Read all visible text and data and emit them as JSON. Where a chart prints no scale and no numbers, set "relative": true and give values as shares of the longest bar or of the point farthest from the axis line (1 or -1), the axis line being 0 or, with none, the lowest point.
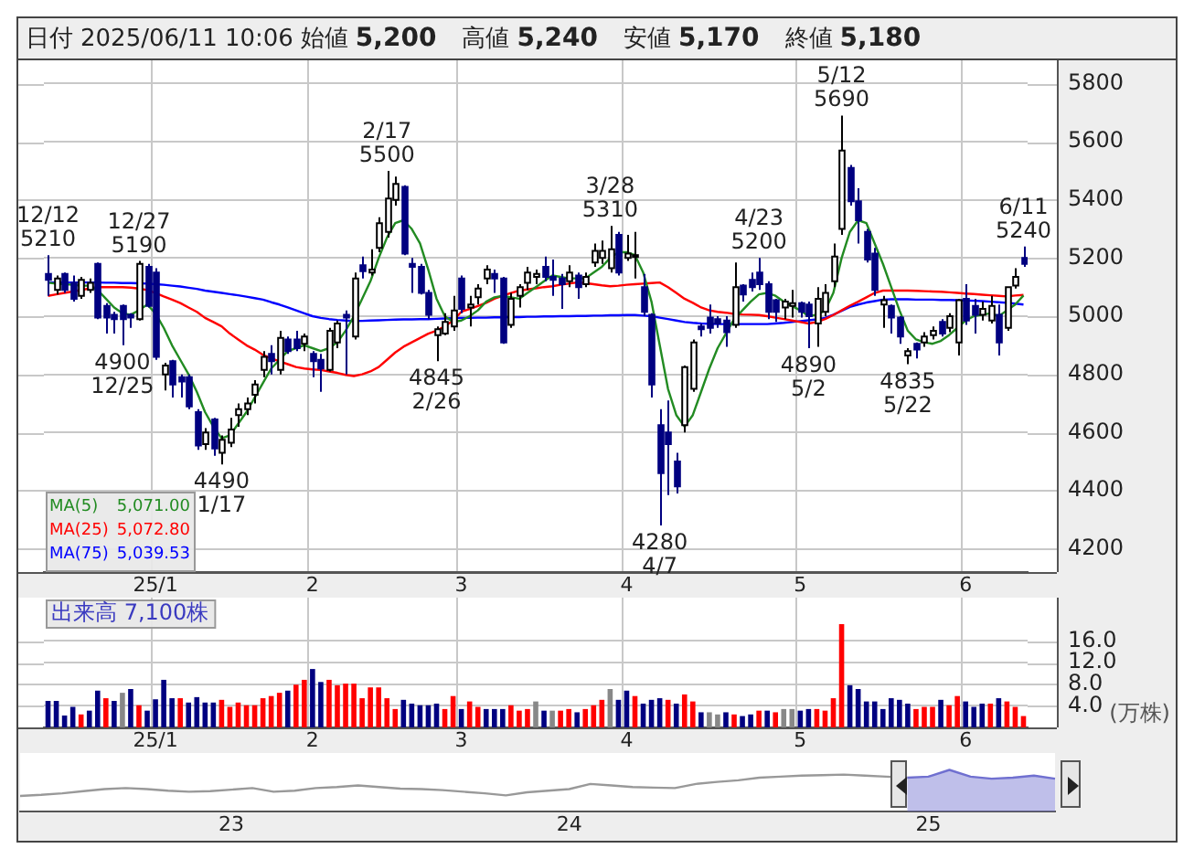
{
  "chart_data": [
    {
      "type": "candlestick",
      "title": "日付 2025/06/11 10:06 始値 5,200 高値 5,240 安値 5,170 終値 5,180",
      "categories": [
        null,
        null,
        null,
        null,
        null,
        null,
        null,
        null,
        null,
        null,
        null,
        null,
        null,
        "25/1",
        null,
        null,
        null,
        null,
        null,
        null,
        null,
        null,
        null,
        null,
        null,
        null,
        null,
        null,
        null,
        null,
        null,
        null,
        "2",
        null,
        null,
        null,
        null,
        null,
        null,
        null,
        null,
        null,
        null,
        null,
        null,
        null,
        null,
        null,
        null,
        null,
        "3",
        null,
        null,
        null,
        null,
        null,
        null,
        null,
        null,
        null,
        null,
        null,
        null,
        null,
        null,
        null,
        null,
        null,
        null,
        null,
        "4",
        null,
        null,
        null,
        null,
        null,
        null,
        null,
        null,
        null,
        null,
        null,
        null,
        null,
        null,
        null,
        null,
        null,
        null,
        null,
        null,
        "5",
        null,
        null,
        null,
        null,
        null,
        null,
        null,
        null,
        null,
        null,
        null,
        null,
        null,
        null,
        null,
        null,
        null,
        null,
        null,
        "6",
        null,
        null,
        null,
        null,
        null,
        null,
        null
      ],
      "ohlc": [
        [
          5145,
          5210,
          5070,
          5125
        ],
        [
          5090,
          5140,
          5075,
          5130
        ],
        [
          5145,
          5150,
          5080,
          5090
        ],
        [
          5115,
          5140,
          5050,
          5060
        ],
        [
          5070,
          5135,
          5060,
          5125
        ],
        [
          5090,
          5130,
          5080,
          5115
        ],
        [
          5180,
          5185,
          4990,
          4995
        ],
        [
          5035,
          5045,
          4940,
          4995
        ],
        [
          5005,
          5015,
          4940,
          4990
        ],
        [
          5035,
          5040,
          4900,
          4990
        ],
        [
          5005,
          5010,
          4960,
          4995
        ],
        [
          4990,
          5190,
          4985,
          5180
        ],
        [
          5170,
          5180,
          5030,
          5035
        ],
        [
          5150,
          5165,
          4850,
          4860
        ],
        [
          4800,
          4840,
          4745,
          4830
        ],
        [
          4845,
          4850,
          4720,
          4765
        ],
        [
          4790,
          4800,
          4720,
          4775
        ],
        [
          4790,
          4800,
          4680,
          4690
        ],
        [
          4670,
          4680,
          4540,
          4555
        ],
        [
          4560,
          4615,
          4540,
          4600
        ],
        [
          4645,
          4650,
          4520,
          4545
        ],
        [
          4530,
          4590,
          4490,
          4575
        ],
        [
          4565,
          4650,
          4550,
          4610
        ],
        [
          4660,
          4700,
          4620,
          4680
        ],
        [
          4680,
          4720,
          4660,
          4700
        ],
        [
          4730,
          4780,
          4700,
          4765
        ],
        [
          4815,
          4880,
          4790,
          4860
        ],
        [
          4870,
          4900,
          4800,
          4845
        ],
        [
          4815,
          4950,
          4800,
          4925
        ],
        [
          4920,
          4930,
          4870,
          4880
        ],
        [
          4920,
          4950,
          4880,
          4890
        ],
        [
          4905,
          4940,
          4880,
          4930
        ],
        [
          4870,
          4880,
          4790,
          4845
        ],
        [
          4850,
          4870,
          4740,
          4820
        ],
        [
          4815,
          4960,
          4810,
          4950
        ],
        [
          4910,
          4985,
          4890,
          4975
        ],
        [
          5005,
          5020,
          4800,
          4995
        ],
        [
          4930,
          5150,
          4920,
          5130
        ],
        [
          5175,
          5205,
          5130,
          5155
        ],
        [
          5150,
          5230,
          5140,
          5160
        ],
        [
          5235,
          5340,
          5220,
          5320
        ],
        [
          5290,
          5500,
          5270,
          5405
        ],
        [
          5400,
          5480,
          5380,
          5455
        ],
        [
          5445,
          5450,
          5210,
          5215
        ],
        [
          5180,
          5200,
          5080,
          5170
        ],
        [
          5170,
          5180,
          5075,
          5080
        ],
        [
          5080,
          5090,
          4990,
          5005
        ],
        [
          4935,
          4965,
          4845,
          4955
        ],
        [
          4940,
          5010,
          4935,
          4980
        ],
        [
          4965,
          5070,
          4950,
          5020
        ],
        [
          5130,
          5140,
          5010,
          5025
        ],
        [
          5030,
          5070,
          4965,
          5040
        ],
        [
          5065,
          5110,
          5040,
          5095
        ],
        [
          5130,
          5175,
          5110,
          5160
        ],
        [
          5145,
          5160,
          5080,
          5130
        ],
        [
          5130,
          5135,
          4905,
          4910
        ],
        [
          4970,
          5080,
          4960,
          5060
        ],
        [
          5070,
          5110,
          5030,
          5100
        ],
        [
          5115,
          5170,
          5090,
          5150
        ],
        [
          5135,
          5160,
          5110,
          5145
        ],
        [
          5170,
          5205,
          5120,
          5135
        ],
        [
          5135,
          5195,
          5070,
          5125
        ],
        [
          5130,
          5145,
          5025,
          5110
        ],
        [
          5120,
          5175,
          5100,
          5150
        ],
        [
          5140,
          5150,
          5060,
          5100
        ],
        [
          5110,
          5150,
          5100,
          5135
        ],
        [
          5185,
          5250,
          5170,
          5225
        ],
        [
          5200,
          5260,
          5180,
          5225
        ],
        [
          5165,
          5310,
          5150,
          5230
        ],
        [
          5280,
          5290,
          5140,
          5150
        ],
        [
          5200,
          5280,
          5190,
          5215
        ],
        [
          5205,
          5290,
          5130,
          5210
        ],
        [
          5100,
          5145,
          5000,
          5015
        ],
        [
          5005,
          5010,
          4720,
          4765
        ],
        [
          4625,
          4680,
          4280,
          4460
        ],
        [
          4600,
          4710,
          4385,
          4560
        ],
        [
          4500,
          4530,
          4390,
          4415
        ],
        [
          4625,
          4830,
          4600,
          4825
        ],
        [
          4750,
          4920,
          4740,
          4910
        ],
        [
          4965,
          4975,
          4930,
          4955
        ],
        [
          4995,
          5040,
          4940,
          4960
        ],
        [
          4990,
          5000,
          4960,
          4975
        ],
        [
          4985,
          5000,
          4895,
          4945
        ],
        [
          4970,
          5185,
          4960,
          5100
        ],
        [
          5105,
          5110,
          5050,
          5075
        ],
        [
          5125,
          5150,
          5085,
          5100
        ],
        [
          5150,
          5200,
          5090,
          5110
        ],
        [
          5110,
          5120,
          4990,
          5015
        ],
        [
          5055,
          5060,
          4980,
          5015
        ],
        [
          5030,
          5060,
          4990,
          5050
        ],
        [
          5035,
          5090,
          4995,
          5045
        ],
        [
          5045,
          5050,
          4995,
          5015
        ],
        [
          5040,
          5050,
          4890,
          5000
        ],
        [
          4975,
          5100,
          4895,
          5060
        ],
        [
          5015,
          5110,
          5000,
          5080
        ],
        [
          5120,
          5250,
          5100,
          5205
        ],
        [
          5300,
          5690,
          5280,
          5570
        ],
        [
          5510,
          5520,
          5380,
          5395
        ],
        [
          5395,
          5440,
          5250,
          5330
        ],
        [
          5290,
          5300,
          5185,
          5195
        ],
        [
          5215,
          5235,
          5070,
          5090
        ],
        [
          5040,
          5070,
          4960,
          5055
        ],
        [
          5035,
          5040,
          4940,
          4995
        ],
        [
          4995,
          5000,
          4905,
          4930
        ],
        [
          4865,
          4890,
          4835,
          4880
        ],
        [
          4905,
          4910,
          4855,
          4885
        ],
        [
          4910,
          4945,
          4895,
          4930
        ],
        [
          4935,
          4965,
          4920,
          4950
        ],
        [
          4980,
          4990,
          4930,
          4940
        ],
        [
          4960,
          5010,
          4945,
          5000
        ],
        [
          4910,
          5060,
          4865,
          5055
        ],
        [
          5060,
          5110,
          4970,
          4985
        ],
        [
          5035,
          5060,
          4940,
          5005
        ],
        [
          5005,
          5050,
          4985,
          5025
        ],
        [
          4985,
          5070,
          4975,
          5035
        ],
        [
          5005,
          5040,
          4865,
          4910
        ],
        [
          4960,
          5100,
          4950,
          5100
        ],
        [
          5105,
          5165,
          5095,
          5135
        ],
        [
          5200,
          5240,
          5170,
          5180
        ]
      ],
      "series": [
        {
          "name": "MA(5)",
          "type": "line",
          "color": "#228b22",
          "values": [
            5115,
            5112,
            5110,
            5108,
            5105,
            5105,
            5090,
            5060,
            5030,
            5010,
            5005,
            5020,
            5040,
            5010,
            4960,
            4900,
            4850,
            4800,
            4740,
            4670,
            4620,
            4580,
            4590,
            4630,
            4670,
            4720,
            4770,
            4820,
            4850,
            4880,
            4890,
            4900,
            4890,
            4880,
            4890,
            4910,
            4950,
            5000,
            5060,
            5120,
            5200,
            5270,
            5320,
            5330,
            5300,
            5250,
            5160,
            5060,
            5000,
            4980,
            4985,
            5000,
            5020,
            5050,
            5065,
            5070,
            5065,
            5060,
            5080,
            5100,
            5120,
            5140,
            5135,
            5130,
            5130,
            5130,
            5150,
            5170,
            5200,
            5220,
            5220,
            5210,
            5150,
            5050,
            4900,
            4750,
            4660,
            4620,
            4660,
            4740,
            4820,
            4890,
            4940,
            4990,
            5020,
            5050,
            5075,
            5080,
            5070,
            5050,
            5035,
            5020,
            5000,
            5005,
            5020,
            5080,
            5200,
            5290,
            5330,
            5320,
            5250,
            5180,
            5100,
            5020,
            4950,
            4920,
            4910,
            4905,
            4915,
            4935,
            4960,
            4985,
            5000,
            5005,
            5010,
            5000,
            5020,
            5040,
            5071
          ]
        },
        {
          "name": "MA(25)",
          "type": "line",
          "color": "#ff0000",
          "values": [
            5070,
            5075,
            5080,
            5085,
            5090,
            5095,
            5100,
            5100,
            5100,
            5100,
            5098,
            5095,
            5090,
            5080,
            5068,
            5057,
            5045,
            5030,
            5015,
            4994,
            4980,
            4965,
            4940,
            4920,
            4900,
            4885,
            4867,
            4855,
            4845,
            4835,
            4825,
            4820,
            4817,
            4815,
            4810,
            4805,
            4798,
            4794,
            4800,
            4810,
            4825,
            4850,
            4875,
            4895,
            4910,
            4925,
            4940,
            4950,
            4965,
            4985,
            5015,
            5025,
            5035,
            5046,
            5060,
            5070,
            5080,
            5088,
            5092,
            5096,
            5100,
            5103,
            5108,
            5112,
            5116,
            5114,
            5110,
            5106,
            5103,
            5105,
            5108,
            5110,
            5112,
            5114,
            5116,
            5100,
            5080,
            5060,
            5046,
            5030,
            5020,
            5015,
            5012,
            5008,
            5006,
            5005,
            5004,
            5000,
            4995,
            4990,
            4985,
            4980,
            4975,
            4980,
            4990,
            5004,
            5020,
            5036,
            5050,
            5065,
            5080,
            5088,
            5088,
            5088,
            5088,
            5087,
            5086,
            5085,
            5084,
            5082,
            5080,
            5078,
            5076,
            5074,
            5072,
            5070,
            5068,
            5071,
            5073
          ]
        },
        {
          "name": "MA(75)",
          "type": "line",
          "color": "#0000ff",
          "values": [
            5116,
            5116,
            5116,
            5116,
            5116,
            5116,
            5116,
            5115,
            5115,
            5114,
            5114,
            5113,
            5112,
            5110,
            5108,
            5105,
            5102,
            5098,
            5094,
            5088,
            5084,
            5080,
            5076,
            5072,
            5067,
            5062,
            5057,
            5048,
            5040,
            5030,
            5020,
            5010,
            5000,
            4994,
            4990,
            4987,
            4985,
            4983,
            4984,
            4985,
            4986,
            4987,
            4988,
            4989,
            4989,
            4990,
            4990,
            4991,
            4992,
            4993,
            4994,
            4994,
            4995,
            4995,
            4996,
            4996,
            4997,
            4997,
            4998,
            4998,
            4999,
            4999,
            5000,
            5000,
            5001,
            5001,
            5002,
            5002,
            5003,
            5003,
            5004,
            5004,
            5002,
            5000,
            4995,
            4990,
            4985,
            4980,
            4977,
            4975,
            4974,
            4973,
            4973,
            4973,
            4973,
            4973,
            4973,
            4973,
            4975,
            4977,
            4980,
            4983,
            4986,
            4989,
            4994,
            5005,
            5018,
            5032,
            5040,
            5047,
            5052,
            5057,
            5058,
            5058,
            5058,
            5057,
            5057,
            5057,
            5056,
            5056,
            5055,
            5054,
            5053,
            5052,
            5050,
            5048,
            5046,
            5043,
            5040
          ]
        }
      ],
      "ylim": [
        4120,
        5880
      ],
      "yticks": [
        4200,
        4400,
        4600,
        4800,
        5000,
        5200,
        5400,
        5600,
        5800
      ],
      "grid": true,
      "legend": "bottom left",
      "annotations": [
        {
          "text": "12/12\n5210",
          "y": 5210
        },
        {
          "text": "12/27\n5190",
          "y": 5190
        },
        {
          "text": "4900\n12/25",
          "y": 4900
        },
        {
          "text": "4490\n1/17",
          "y": 4490
        },
        {
          "text": "2/17\n5500",
          "y": 5500
        },
        {
          "text": "4845\n2/26",
          "y": 4845
        },
        {
          "text": "3/28\n5310",
          "y": 5310
        },
        {
          "text": "4280\n4/7",
          "y": 4280
        },
        {
          "text": "4/23\n5200",
          "y": 5200
        },
        {
          "text": "4890\n5/2",
          "y": 4890
        },
        {
          "text": "5/12\n5690",
          "y": 5690
        },
        {
          "text": "4835\n5/22",
          "y": 4835
        },
        {
          "text": "6/11\n5240",
          "y": 5240
        },
        "5,071.00",
        "5,072.80",
        "5,039.53"
      ]
    },
    {
      "type": "bar",
      "categories": [
        null,
        null,
        null,
        null,
        null,
        null,
        null,
        null,
        null,
        null,
        null,
        null,
        null,
        "25/1",
        null,
        null,
        null,
        null,
        null,
        null,
        null,
        null,
        null,
        null,
        null,
        null,
        null,
        null,
        null,
        null,
        null,
        null,
        "2",
        null,
        null,
        null,
        null,
        null,
        null,
        null,
        null,
        null,
        null,
        null,
        null,
        null,
        null,
        null,
        null,
        null,
        "3",
        null,
        null,
        null,
        null,
        null,
        null,
        null,
        null,
        null,
        null,
        null,
        null,
        null,
        null,
        null,
        null,
        null,
        null,
        null,
        "4",
        null,
        null,
        null,
        null,
        null,
        null,
        null,
        null,
        null,
        null,
        null,
        null,
        null,
        null,
        null,
        null,
        null,
        null,
        null,
        null,
        "5",
        null,
        null,
        null,
        null,
        null,
        null,
        null,
        null,
        null,
        null,
        null,
        null,
        null,
        null,
        null,
        null,
        null,
        null,
        null,
        "6",
        null,
        null,
        null,
        null,
        null,
        null,
        null
      ],
      "values": [
        4.9,
        4.9,
        2.2,
        3.8,
        2.4,
        3.1,
        6.8,
        5.4,
        4.9,
        6.4,
        7.1,
        4.1,
        3.1,
        5.2,
        8.8,
        5.4,
        5.4,
        4.6,
        5.6,
        4.6,
        4.6,
        5.1,
        3.8,
        4.6,
        4.1,
        4.1,
        5.4,
        5.8,
        6.4,
        6.8,
        7.9,
        8.8,
        10.8,
        8.4,
        8.8,
        7.8,
        8.1,
        8.1,
        5.4,
        7.4,
        7.4,
        5.4,
        3.4,
        5.1,
        4.4,
        4.1,
        4.1,
        4.4,
        3.4,
        5.8,
        3.4,
        4.8,
        3.8,
        3.4,
        3.4,
        3.4,
        4.1,
        3.1,
        3.4,
        4.8,
        3.1,
        3.1,
        3.1,
        3.4,
        2.8,
        3.4,
        4.1,
        5.1,
        7.1,
        5.1,
        6.8,
        5.8,
        4.4,
        5.1,
        5.4,
        5.1,
        4.4,
        6.1,
        4.8,
        2.8,
        2.8,
        2.4,
        2.8,
        2.4,
        2.1,
        2.4,
        3.1,
        3.1,
        2.8,
        3.4,
        3.4,
        3.1,
        3.4,
        3.4,
        3.1,
        5.4,
        19.1,
        7.8,
        7.1,
        4.8,
        4.8,
        3.4,
        5.4,
        5.1,
        4.4,
        3.4,
        3.8,
        3.8,
        5.1,
        4.1,
        5.8,
        4.8,
        3.8,
        4.4,
        4.4,
        5.4,
        4.8,
        3.8,
        2.1
      ],
      "colors": [
        "#000080",
        "#000080",
        "#000080",
        "#000080",
        "#ff0000",
        "#000080",
        "#000080",
        "#ff0000",
        "#000080",
        "#888888",
        "#000080",
        "#ff0000",
        "#000080",
        "#000080",
        "#000080",
        "#000080",
        "#ff0000",
        "#000080",
        "#000080",
        "#000080",
        "#000080",
        "#ff0000",
        "#ff0000",
        "#ff0000",
        "#ff0000",
        "#ff0000",
        "#ff0000",
        "#ff0000",
        "#ff0000",
        "#000080",
        "#ff0000",
        "#ff0000",
        "#000080",
        "#000080",
        "#ff0000",
        "#ff0000",
        "#ff0000",
        "#ff0000",
        "#ff0000",
        "#ff0000",
        "#ff0000",
        "#ff0000",
        "#ff0000",
        "#000080",
        "#000080",
        "#000080",
        "#000080",
        "#000080",
        "#ff0000",
        "#ff0000",
        "#000080",
        "#ff0000",
        "#ff0000",
        "#000080",
        "#000080",
        "#000080",
        "#ff0000",
        "#ff0000",
        "#ff0000",
        "#888888",
        "#000080",
        "#888888",
        "#ff0000",
        "#ff0000",
        "#000080",
        "#ff0000",
        "#ff0000",
        "#ff0000",
        "#888888",
        "#000080",
        "#000080",
        "#ff0000",
        "#000080",
        "#000080",
        "#000080",
        "#ff0000",
        "#000080",
        "#ff0000",
        "#ff0000",
        "#000080",
        "#888888",
        "#888888",
        "#000080",
        "#ff0000",
        "#000080",
        "#000080",
        "#ff0000",
        "#000080",
        "#ff0000",
        "#888888",
        "#888888",
        "#000080",
        "#000080",
        "#ff0000",
        "#ff0000",
        "#ff0000",
        "#ff0000",
        "#000080",
        "#000080",
        "#000080",
        "#000080",
        "#000080",
        "#000080",
        "#000080",
        "#000080",
        "#ff0000",
        "#ff0000",
        "#ff0000",
        "#000080",
        "#ff0000",
        "#ff0000",
        "#000080",
        "#000080",
        "#000080",
        "#ff0000",
        "#000080",
        "#ff0000",
        "#ff0000",
        "#ff0000"
      ],
      "ylim": [
        0,
        24
      ],
      "yticks": [
        {
          "value": 4,
          "label": "4.0"
        },
        {
          "value": 8,
          "label": "8.0"
        },
        {
          "value": 12,
          "label": "12.0"
        },
        {
          "value": 16,
          "label": "16.0"
        }
      ],
      "grid": true,
      "ylabel": "(万株)",
      "annotations": [
        "出来高 7,100株"
      ]
    },
    {
      "type": "line",
      "relative": true,
      "categories": [
        null,
        null,
        null,
        null,
        null,
        null,
        null,
        null,
        null,
        null,
        "23",
        null,
        null,
        null,
        null,
        null,
        null,
        null,
        null,
        null,
        null,
        null,
        null,
        null,
        null,
        null,
        "24",
        null,
        null,
        null,
        null,
        null,
        null,
        null,
        null,
        null,
        null,
        null,
        null,
        null,
        null,
        null,
        null,
        "25",
        null,
        null,
        null,
        null,
        null,
        null
      ],
      "series": [
        {
          "type": "line",
          "color": "#999999",
          "values": [
            0,
            0.04,
            0.1,
            0.18,
            0.26,
            0.3,
            0.26,
            0.2,
            0.16,
            0.18,
            0.24,
            0.3,
            0.16,
            0.2,
            0.3,
            0.34,
            0.4,
            0.34,
            0.28,
            0.26,
            0.22,
            0.16,
            0.1,
            0.02,
            0.14,
            0.2,
            0.26,
            0.46,
            0.4,
            0.34,
            0.32,
            0.3,
            0.46,
            0.54,
            0.6,
            0.7,
            0.74,
            0.78,
            0.8,
            0.82,
            0.78,
            0.74,
            0.7,
            null,
            null,
            null,
            null,
            null,
            null,
            null
          ]
        },
        {
          "type": "area",
          "color": "#7070d0",
          "values": [
            null,
            null,
            null,
            null,
            null,
            null,
            null,
            null,
            null,
            null,
            null,
            null,
            null,
            null,
            null,
            null,
            null,
            null,
            null,
            null,
            null,
            null,
            null,
            null,
            null,
            null,
            null,
            null,
            null,
            null,
            null,
            null,
            null,
            null,
            null,
            null,
            null,
            null,
            null,
            null,
            null,
            null,
            0.7,
            0.74,
            1,
            0.74,
            0.66,
            0.7,
            0.78,
            0.66
          ]
        }
      ]
    }
  ]
}
